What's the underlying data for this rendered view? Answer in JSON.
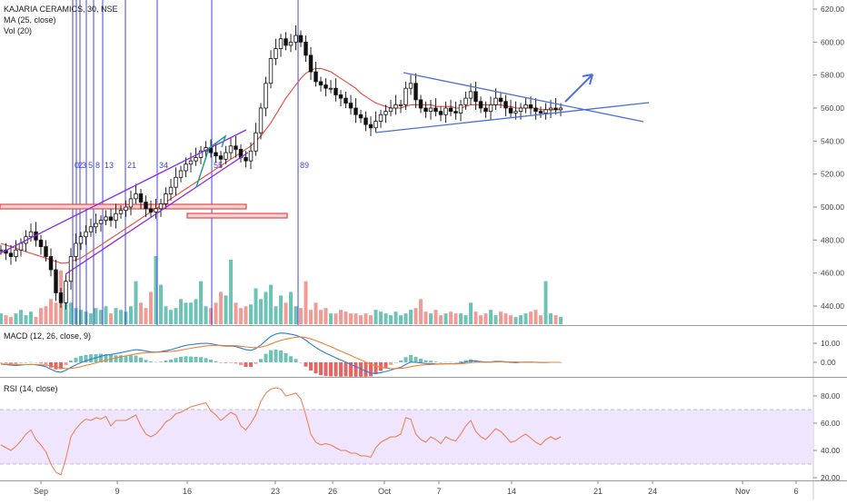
{
  "header": {
    "symbol": "KAJARIA CERAMICS, 30, NSE",
    "ma_label": "MA (25, close)",
    "vol_label": "Vol (20)"
  },
  "macd_label": "MACD (12, 26, close, 9)",
  "rsi_label": "RSI (14, close)",
  "colors": {
    "up": "#53b9a8",
    "down": "#ef8a84",
    "candle": "#111111",
    "ma": "#e8453c",
    "channel": "#8a2be2",
    "trend": "#4a6fdc",
    "fib": "#3333cc",
    "support": "#e04a4a",
    "macd": "#2e7bd6",
    "signal": "#f08030",
    "rsi": "#f07a4a",
    "rsi_band": "#ede0ff"
  },
  "chart_data": [
    {
      "type": "candlestick",
      "pane": "price",
      "title": "KAJARIA CERAMICS, 30, NSE",
      "ylim": [
        425,
        630
      ],
      "yticks": [
        "620.00",
        "600.00",
        "580.00",
        "560.00",
        "540.00",
        "520.00",
        "500.00",
        "480.00",
        "460.00",
        "440.00"
      ],
      "ytick_values": [
        620,
        600,
        580,
        560,
        540,
        520,
        500,
        480,
        460,
        440
      ],
      "close_series": [
        474,
        472,
        470,
        474,
        478,
        482,
        485,
        480,
        476,
        470,
        462,
        448,
        442,
        455,
        470,
        478,
        482,
        485,
        488,
        490,
        492,
        494,
        492,
        496,
        498,
        500,
        505,
        508,
        503,
        499,
        497,
        499,
        502,
        508,
        512,
        518,
        522,
        526,
        528,
        530,
        534,
        536,
        533,
        531,
        529,
        533,
        537,
        535,
        530,
        528,
        534,
        545,
        560,
        575,
        590,
        596,
        602,
        598,
        600,
        604,
        600,
        592,
        582,
        576,
        574,
        572,
        572,
        568,
        566,
        563,
        560,
        556,
        554,
        550,
        548,
        552,
        556,
        558,
        560,
        562,
        562,
        572,
        575,
        565,
        560,
        558,
        560,
        558,
        556,
        560,
        558,
        557,
        562,
        566,
        570,
        564,
        560,
        558,
        562,
        566,
        564,
        560,
        557,
        558,
        560,
        562,
        560,
        558,
        557,
        559,
        560,
        559,
        560
      ],
      "ma_series": [
        478,
        477,
        476,
        475,
        474,
        473,
        472,
        471,
        470,
        469,
        468,
        467,
        466,
        466,
        467,
        468,
        469,
        471,
        473,
        475,
        477,
        479,
        481,
        483,
        485,
        487,
        489,
        491,
        493,
        495,
        497,
        499,
        501,
        503,
        505,
        507,
        509,
        511,
        513,
        515,
        517,
        519,
        521,
        523,
        525,
        527,
        529,
        531,
        533,
        535,
        537,
        540,
        543,
        547,
        551,
        556,
        561,
        566,
        570,
        574,
        578,
        581,
        583,
        584,
        584,
        583,
        582,
        580,
        578,
        576,
        574,
        572,
        569,
        567,
        565,
        563,
        562,
        561,
        560,
        560,
        560,
        561,
        562,
        562,
        562,
        562,
        562,
        561,
        561,
        561,
        561,
        560,
        560,
        561,
        562,
        562,
        562,
        562,
        562,
        562,
        562,
        561,
        561,
        560,
        560,
        560,
        560,
        560,
        559,
        559,
        559,
        559,
        559
      ],
      "annotations": [
        "Fibonacci time zones: 0, 2, 3, 5, 8, 13, 21, 34, 55, 89",
        "Rising parallel channel",
        "Symmetrical triangle",
        "Support zone ~500",
        "Breakout arrow"
      ]
    },
    {
      "type": "bar",
      "pane": "volume",
      "title": "Vol (20)",
      "values": [
        6,
        5,
        4,
        6,
        8,
        5,
        7,
        4,
        9,
        10,
        14,
        12,
        30,
        22,
        12,
        9,
        8,
        7,
        6,
        9,
        8,
        10,
        6,
        9,
        8,
        7,
        10,
        24,
        12,
        9,
        18,
        38,
        22,
        10,
        8,
        9,
        14,
        12,
        12,
        14,
        24,
        10,
        9,
        12,
        18,
        16,
        36,
        12,
        9,
        10,
        11,
        20,
        14,
        18,
        22,
        10,
        16,
        12,
        18,
        10,
        9,
        24,
        8,
        12,
        8,
        9,
        6,
        6,
        8,
        7,
        6,
        6,
        5,
        6,
        5,
        8,
        7,
        6,
        5,
        7,
        5,
        6,
        8,
        9,
        14,
        7,
        6,
        8,
        5,
        6,
        7,
        6,
        6,
        5,
        12,
        7,
        5,
        6,
        8,
        5,
        7,
        6,
        5,
        4,
        5,
        6,
        7,
        8,
        5,
        24,
        6,
        5,
        4
      ]
    },
    {
      "type": "line",
      "pane": "macd",
      "title": "MACD (12, 26, close, 9)",
      "ylim": [
        -12,
        16
      ],
      "yticks": [
        "10.00",
        "0.00"
      ],
      "ytick_values": [
        10,
        0
      ],
      "series": [
        {
          "name": "MACD",
          "values": [
            -1,
            -1.2,
            -1.5,
            -1.6,
            -1.4,
            -1.2,
            -1.1,
            -1.3,
            -1.7,
            -2.3,
            -3.6,
            -4.8,
            -5.2,
            -4.2,
            -2.6,
            -1.3,
            -0.2,
            0.8,
            1.6,
            2.4,
            3.2,
            3.8,
            4.1,
            4.6,
            5.1,
            5.6,
            6.2,
            6.6,
            6.4,
            5.9,
            5.5,
            5.4,
            5.6,
            6.1,
            6.6,
            7.4,
            8.2,
            8.9,
            9.3,
            9.6,
            9.9,
            10,
            9.7,
            9.3,
            8.7,
            8.5,
            8.6,
            8.3,
            7.5,
            6.6,
            6.3,
            7.2,
            9.1,
            11.4,
            13.6,
            14.8,
            15.4,
            15.2,
            14.7,
            14.2,
            13.2,
            11.6,
            9.6,
            7.8,
            6.2,
            4.8,
            3.6,
            2.4,
            1.2,
            0.1,
            -1.1,
            -2.3,
            -3.4,
            -4.6,
            -5.6,
            -5.8,
            -5.4,
            -4.8,
            -4.1,
            -3.3,
            -2.6,
            -1.1,
            0.1,
            0,
            -0.3,
            -0.6,
            -0.6,
            -0.8,
            -0.9,
            -0.7,
            -0.7,
            -0.8,
            -0.4,
            0.2,
            0.8,
            0.7,
            0.4,
            0.1,
            0.2,
            0.5,
            0.5,
            0.3,
            0,
            -0.1,
            0,
            0.1,
            0.1,
            0,
            -0.1,
            -0.1,
            0,
            0,
            0
          ]
        },
        {
          "name": "Signal",
          "values": [
            -0.8,
            -0.9,
            -1,
            -1.1,
            -1.2,
            -1.2,
            -1.2,
            -1.2,
            -1.3,
            -1.5,
            -1.9,
            -2.5,
            -3,
            -3.3,
            -3.2,
            -2.8,
            -2.3,
            -1.6,
            -1,
            -0.3,
            0.4,
            1.1,
            1.7,
            2.3,
            2.8,
            3.4,
            3.9,
            4.4,
            4.8,
            5.1,
            5.2,
            5.3,
            5.4,
            5.5,
            5.7,
            6,
            6.4,
            6.9,
            7.4,
            7.8,
            8.2,
            8.6,
            8.8,
            8.9,
            8.9,
            8.8,
            8.8,
            8.7,
            8.4,
            8.1,
            7.8,
            7.7,
            8,
            8.6,
            9.6,
            10.6,
            11.5,
            12.2,
            12.7,
            13.1,
            13.3,
            13,
            12.3,
            11.4,
            10.4,
            9.3,
            8.2,
            7,
            5.9,
            4.7,
            3.6,
            2.4,
            1.3,
            0.1,
            -1,
            -1.9,
            -2.6,
            -3,
            -3.3,
            -3.3,
            -3.2,
            -2.8,
            -2.3,
            -1.8,
            -1.5,
            -1.3,
            -1.1,
            -1,
            -0.9,
            -0.8,
            -0.8,
            -0.8,
            -0.7,
            -0.5,
            -0.2,
            0,
            0.1,
            0.1,
            0.1,
            0.2,
            0.3,
            0.3,
            0.2,
            0.2,
            0.1,
            0.1,
            0.1,
            0.1,
            0,
            0,
            0,
            0,
            0
          ]
        }
      ]
    },
    {
      "type": "line",
      "pane": "rsi",
      "title": "RSI (14, close)",
      "ylim": [
        15,
        90
      ],
      "yticks": [
        "80.00",
        "60.00",
        "40.00",
        "20.00"
      ],
      "ytick_values": [
        80,
        60,
        40,
        20
      ],
      "band": [
        30,
        70
      ],
      "series": [
        {
          "name": "RSI",
          "values": [
            44,
            42,
            40,
            43,
            47,
            52,
            55,
            48,
            44,
            39,
            30,
            24,
            22,
            34,
            50,
            56,
            60,
            63,
            62,
            64,
            63,
            65,
            58,
            62,
            62,
            62,
            64,
            66,
            58,
            52,
            50,
            52,
            56,
            61,
            63,
            67,
            68,
            70,
            72,
            73,
            74,
            75,
            69,
            66,
            62,
            65,
            68,
            66,
            58,
            55,
            60,
            66,
            76,
            82,
            85,
            86,
            85,
            80,
            81,
            82,
            78,
            66,
            52,
            46,
            44,
            45,
            44,
            42,
            40,
            40,
            38,
            38,
            36,
            36,
            35,
            42,
            46,
            48,
            50,
            50,
            52,
            64,
            63,
            52,
            48,
            46,
            50,
            48,
            45,
            50,
            48,
            47,
            52,
            58,
            62,
            54,
            50,
            48,
            52,
            56,
            54,
            50,
            46,
            47,
            50,
            52,
            49,
            46,
            44,
            48,
            50,
            48,
            50
          ]
        }
      ]
    }
  ],
  "x_axis": {
    "labels": [
      "Sep",
      "9",
      "16",
      "23",
      "26",
      "Oct",
      "7",
      "14",
      "21",
      "24",
      "Nov",
      "6"
    ]
  }
}
